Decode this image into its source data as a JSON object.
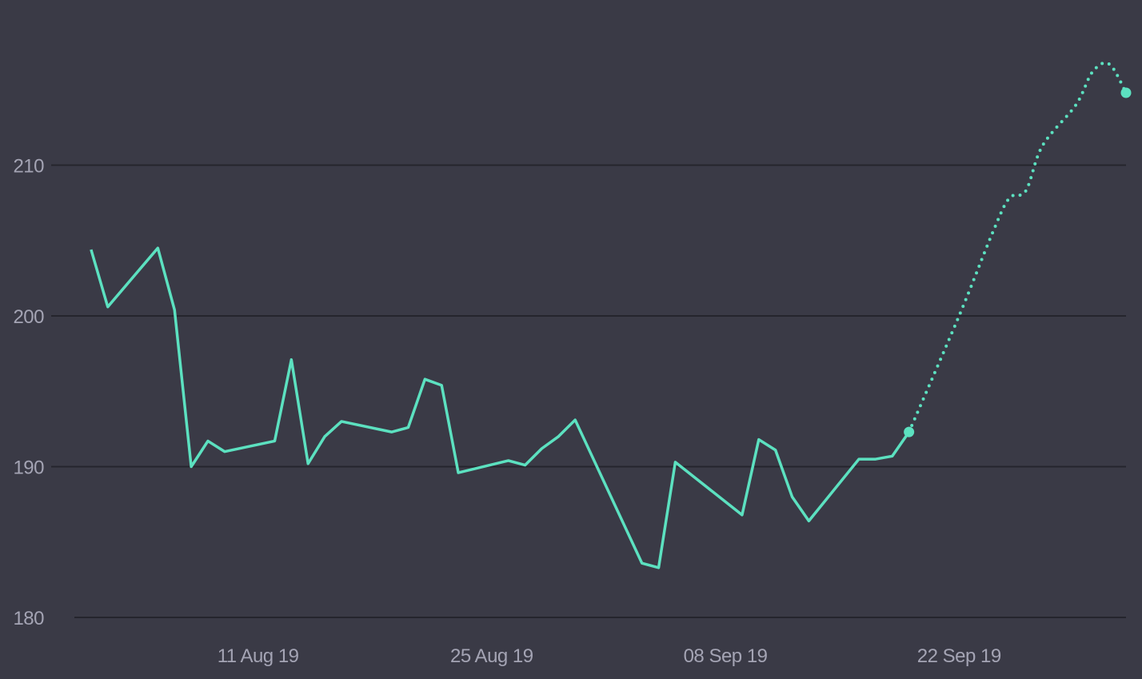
{
  "theme": {
    "background": "#3a3a46",
    "line_color": "#5ce1c0",
    "grid_color": "#25252d",
    "label_color": "#a4a4b4"
  },
  "chart_data": {
    "type": "line",
    "title": "",
    "xlabel": "",
    "ylabel": "",
    "grid": "horizontal",
    "legend": "none",
    "ylim": [
      180,
      215
    ],
    "xlim": [
      "2019-07-31",
      "2019-10-02"
    ],
    "y_ticks": [
      {
        "value": 180,
        "label": "180"
      },
      {
        "value": 190,
        "label": "190"
      },
      {
        "value": 200,
        "label": "200"
      },
      {
        "value": 210,
        "label": "210"
      }
    ],
    "x_ticks": [
      {
        "value": "2019-08-11",
        "label": "11 Aug 19"
      },
      {
        "value": "2019-08-25",
        "label": "25 Aug 19"
      },
      {
        "value": "2019-09-08",
        "label": "08 Sep 19"
      },
      {
        "value": "2019-09-22",
        "label": "22 Sep 19"
      }
    ],
    "series": [
      {
        "style": "solid",
        "points": [
          {
            "x": "2019-08-01",
            "y": 204.4
          },
          {
            "x": "2019-08-02",
            "y": 200.6
          },
          {
            "x": "2019-08-05",
            "y": 204.5
          },
          {
            "x": "2019-08-06",
            "y": 200.4
          },
          {
            "x": "2019-08-07",
            "y": 190.0
          },
          {
            "x": "2019-08-08",
            "y": 191.7
          },
          {
            "x": "2019-08-09",
            "y": 191.0
          },
          {
            "x": "2019-08-12",
            "y": 191.7
          },
          {
            "x": "2019-08-13",
            "y": 197.1
          },
          {
            "x": "2019-08-14",
            "y": 190.2
          },
          {
            "x": "2019-08-15",
            "y": 192.0
          },
          {
            "x": "2019-08-16",
            "y": 193.0
          },
          {
            "x": "2019-08-19",
            "y": 192.3
          },
          {
            "x": "2019-08-20",
            "y": 192.6
          },
          {
            "x": "2019-08-21",
            "y": 195.8
          },
          {
            "x": "2019-08-22",
            "y": 195.4
          },
          {
            "x": "2019-08-23",
            "y": 189.6
          },
          {
            "x": "2019-08-26",
            "y": 190.4
          },
          {
            "x": "2019-08-27",
            "y": 190.1
          },
          {
            "x": "2019-08-28",
            "y": 191.2
          },
          {
            "x": "2019-08-29",
            "y": 192.0
          },
          {
            "x": "2019-08-30",
            "y": 193.1
          },
          {
            "x": "2019-09-03",
            "y": 183.6
          },
          {
            "x": "2019-09-04",
            "y": 183.3
          },
          {
            "x": "2019-09-05",
            "y": 190.3
          },
          {
            "x": "2019-09-09",
            "y": 186.8
          },
          {
            "x": "2019-09-10",
            "y": 191.8
          },
          {
            "x": "2019-09-11",
            "y": 191.1
          },
          {
            "x": "2019-09-12",
            "y": 188.0
          },
          {
            "x": "2019-09-13",
            "y": 186.4
          },
          {
            "x": "2019-09-16",
            "y": 190.5
          },
          {
            "x": "2019-09-17",
            "y": 190.5
          },
          {
            "x": "2019-09-18",
            "y": 190.7
          },
          {
            "x": "2019-09-19",
            "y": 192.3
          }
        ]
      },
      {
        "style": "dotted",
        "points": [
          {
            "x": "2019-09-19",
            "y": 192.3
          },
          {
            "x": "2019-09-22",
            "y": 200.0
          },
          {
            "x": "2019-09-24",
            "y": 205.5
          },
          {
            "x": "2019-09-25",
            "y": 207.8
          },
          {
            "x": "2019-09-26",
            "y": 208.3
          },
          {
            "x": "2019-09-27",
            "y": 211.3
          },
          {
            "x": "2019-09-29",
            "y": 214.0
          },
          {
            "x": "2019-09-30",
            "y": 216.2
          },
          {
            "x": "2019-10-01",
            "y": 216.7
          },
          {
            "x": "2019-10-02",
            "y": 214.8
          }
        ]
      }
    ],
    "markers": [
      {
        "x": "2019-09-19",
        "y": 192.3
      },
      {
        "x": "2019-10-02",
        "y": 214.8
      }
    ]
  }
}
